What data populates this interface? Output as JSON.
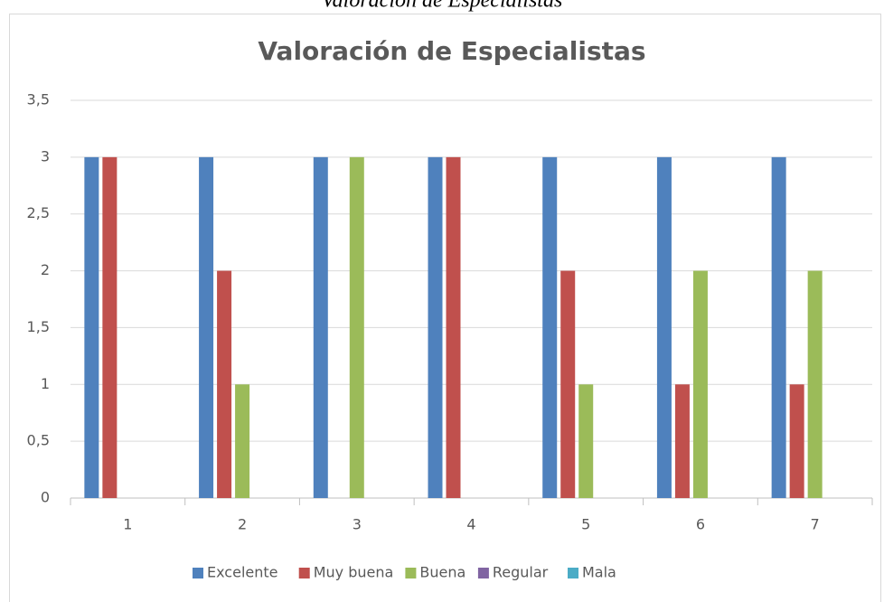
{
  "caption": "Valoración de Especialistas",
  "chart_data": {
    "type": "bar",
    "title": "Valoración de Especialistas",
    "categories": [
      "1",
      "2",
      "3",
      "4",
      "5",
      "6",
      "7"
    ],
    "series": [
      {
        "name": "Excelente",
        "color": "#4f81bd",
        "values": [
          3,
          3,
          3,
          3,
          3,
          3,
          3
        ]
      },
      {
        "name": "Muy buena",
        "color": "#c0504d",
        "values": [
          3,
          2,
          0,
          3,
          2,
          1,
          1
        ]
      },
      {
        "name": "Buena",
        "color": "#9bbb59",
        "values": [
          0,
          1,
          3,
          0,
          1,
          2,
          2
        ]
      },
      {
        "name": "Regular",
        "color": "#8064a2",
        "values": [
          0,
          0,
          0,
          0,
          0,
          0,
          0
        ]
      },
      {
        "name": "Mala",
        "color": "#4bacc6",
        "values": [
          0,
          0,
          0,
          0,
          0,
          0,
          0
        ]
      }
    ],
    "ylim": [
      0,
      3.5
    ],
    "yticks": [
      0,
      {
        "value": 0.5,
        "label": "0,5"
      },
      1,
      {
        "value": 1.5,
        "label": "1,5"
      },
      2,
      {
        "value": 2.5,
        "label": "2,5"
      },
      3,
      {
        "value": 3.5,
        "label": "3,5"
      }
    ],
    "grid": true,
    "legend": "bottom"
  }
}
